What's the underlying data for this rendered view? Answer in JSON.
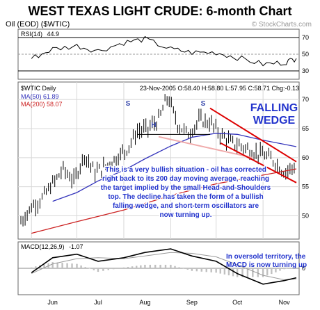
{
  "title": "WEST TEXAS LIGHT CRUDE: 6-month Chart",
  "subtitle": "Oil (EOD) ($WTIC)",
  "watermark": "© StockCharts.com",
  "colors": {
    "price": "#000000",
    "ma50": "#3333bb",
    "ma200": "#cc2222",
    "wedge": "#dd0000",
    "neckline": "#f0aaaa",
    "annotation_text": "#2233cc",
    "grid": "#d8d8d8",
    "frame": "#666666",
    "rsi_line": "#000000",
    "macd_hist": "#c0c0c0"
  },
  "chart_data": [
    {
      "type": "line",
      "panel": "rsi",
      "label": "RSI(14)",
      "last_value": "44.9",
      "ylim": [
        20,
        80
      ],
      "reference_levels": [
        70,
        50,
        30
      ],
      "tick_labels": [
        "70",
        "50",
        "30"
      ],
      "x": [
        "Jun 1",
        "Jun 15",
        "Jul 1",
        "Jul 15",
        "Aug 1",
        "Aug 15",
        "Sep 1",
        "Sep 15",
        "Oct 1",
        "Oct 15",
        "Nov 1",
        "Nov 15",
        "Nov 23"
      ],
      "values": [
        45,
        56,
        60,
        54,
        64,
        68,
        56,
        52,
        52,
        46,
        38,
        40,
        44.9
      ]
    },
    {
      "type": "line",
      "panel": "price",
      "ticker_label": "$WTIC Daily",
      "info_line": "23-Nov-2005  O:58.40  H:58.80  L:57.95  C:58.71  Chg:-0.13",
      "ylim": [
        46,
        73
      ],
      "y_ticks": [
        50,
        55,
        60,
        65,
        70
      ],
      "x_ticks": [
        "Jun",
        "Jul",
        "Aug",
        "Sep",
        "Oct",
        "Nov"
      ],
      "grid": true,
      "series": [
        {
          "name": "MA(50) 61.89",
          "key": "ma50"
        },
        {
          "name": "MA(200) 58.07",
          "key": "ma200"
        }
      ],
      "price_points": [
        [
          "May 25",
          49.0
        ],
        [
          "Jun 1",
          51.5
        ],
        [
          "Jun 8",
          53.0
        ],
        [
          "Jun 15",
          55.5
        ],
        [
          "Jun 22",
          58.0
        ],
        [
          "Jun 29",
          56.0
        ],
        [
          "Jul 6",
          60.5
        ],
        [
          "Jul 13",
          57.5
        ],
        [
          "Jul 20",
          58.5
        ],
        [
          "Jul 27",
          60.0
        ],
        [
          "Aug 3",
          61.5
        ],
        [
          "Aug 10",
          64.5
        ],
        [
          "Aug 17",
          65.0
        ],
        [
          "Aug 24",
          66.5
        ],
        [
          "Aug 30",
          70.5
        ],
        [
          "Sep 6",
          65.5
        ],
        [
          "Sep 13",
          64.0
        ],
        [
          "Sep 20",
          66.5
        ],
        [
          "Sep 27",
          66.0
        ],
        [
          "Oct 4",
          64.0
        ],
        [
          "Oct 11",
          62.5
        ],
        [
          "Oct 18",
          62.0
        ],
        [
          "Oct 25",
          61.0
        ],
        [
          "Nov 1",
          60.5
        ],
        [
          "Nov 8",
          59.5
        ],
        [
          "Nov 15",
          57.5
        ],
        [
          "Nov 23",
          58.71
        ]
      ],
      "ma50_points": [
        [
          "Jun 15",
          52.5
        ],
        [
          "Jul 1",
          54.0
        ],
        [
          "Jul 15",
          56.0
        ],
        [
          "Aug 1",
          57.8
        ],
        [
          "Aug 15",
          59.8
        ],
        [
          "Sep 1",
          62.0
        ],
        [
          "Sep 15",
          63.5
        ],
        [
          "Oct 1",
          64.2
        ],
        [
          "Oct 15",
          64.0
        ],
        [
          "Nov 1",
          63.0
        ],
        [
          "Nov 23",
          61.89
        ]
      ],
      "ma200_points": [
        [
          "Jun 1",
          47.0
        ],
        [
          "Jul 1",
          49.0
        ],
        [
          "Aug 1",
          51.0
        ],
        [
          "Sep 1",
          53.5
        ],
        [
          "Oct 1",
          55.5
        ],
        [
          "Nov 1",
          57.0
        ],
        [
          "Nov 23",
          58.07
        ]
      ],
      "pattern_labels": [
        "S",
        "H",
        "S"
      ],
      "annotations": {
        "wedge_title": "FALLING",
        "wedge_title_2": "WEDGE",
        "main_text": [
          "This is a very bullish situation - oil has corrected",
          "right back to its 200 day moving average, reaching",
          "the target implied by the small Head-and-Shoulders",
          "top. The decline has taken the form of a bullish",
          "falling wedge, and short-term oscillators are",
          "now turning up."
        ]
      }
    },
    {
      "type": "line",
      "panel": "macd",
      "label": "MACD(12,26,9)",
      "last_value": "-1.07",
      "ylim": [
        -3,
        3
      ],
      "tick_labels": [
        "0"
      ],
      "x": [
        "Jun 1",
        "Jun 15",
        "Jul 1",
        "Jul 15",
        "Aug 1",
        "Aug 15",
        "Sep 1",
        "Sep 15",
        "Oct 1",
        "Oct 15",
        "Nov 1",
        "Nov 15",
        "Nov 23"
      ],
      "macd": [
        -0.5,
        1.2,
        1.6,
        0.8,
        1.2,
        1.8,
        2.2,
        1.4,
        0.8,
        -0.6,
        -1.8,
        -1.4,
        -1.07
      ],
      "signal": [
        -0.6,
        0.5,
        1.1,
        1.2,
        1.1,
        1.4,
        1.8,
        1.7,
        1.3,
        0.4,
        -0.8,
        -1.3,
        -1.2
      ],
      "annotation": [
        "In oversold territory, the",
        "MACD is now turning up"
      ]
    }
  ]
}
